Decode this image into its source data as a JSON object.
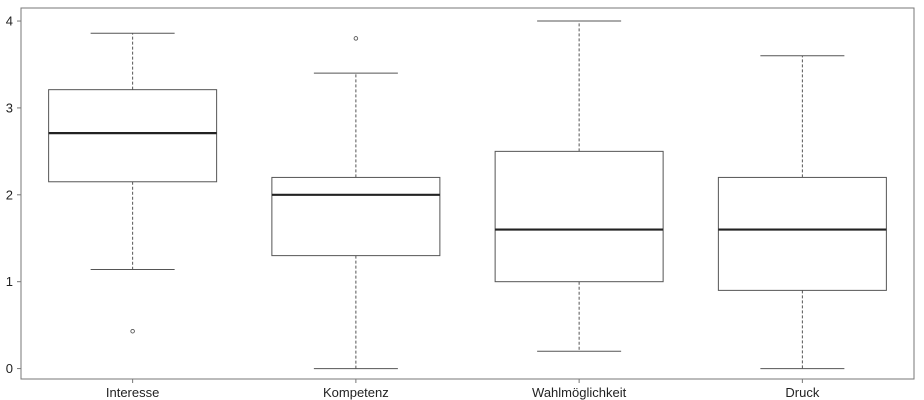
{
  "chart_data": {
    "type": "boxplot",
    "categories": [
      "Interesse",
      "Kompetenz",
      "Wahlmöglichkeit",
      "Druck"
    ],
    "series": [
      {
        "category": "Interesse",
        "whisker_low": 1.14,
        "q1": 2.15,
        "median": 2.71,
        "q3": 3.21,
        "whisker_high": 3.86,
        "outliers": [
          0.43
        ]
      },
      {
        "category": "Kompetenz",
        "whisker_low": 0.0,
        "q1": 1.3,
        "median": 2.0,
        "q3": 2.2,
        "whisker_high": 3.4,
        "outliers": [
          3.8
        ]
      },
      {
        "category": "Wahlmöglichkeit",
        "whisker_low": 0.2,
        "q1": 1.0,
        "median": 1.6,
        "q3": 2.5,
        "whisker_high": 4.0,
        "outliers": []
      },
      {
        "category": "Druck",
        "whisker_low": 0.0,
        "q1": 0.9,
        "median": 1.6,
        "q3": 2.2,
        "whisker_high": 3.6,
        "outliers": []
      }
    ],
    "y_ticks": [
      "0",
      "1",
      "2",
      "3",
      "4"
    ],
    "ylim": [
      -0.12,
      4.15
    ],
    "title": "",
    "xlabel": "",
    "ylabel": "",
    "grid": false,
    "colors": {
      "box_stroke": "#555555",
      "median": "#222222",
      "whisker": "#555555",
      "axis": "#777777"
    }
  }
}
